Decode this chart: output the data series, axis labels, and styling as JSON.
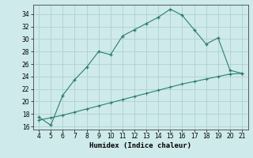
{
  "xlabel": "Humidex (Indice chaleur)",
  "x_curve": [
    4,
    5,
    6,
    7,
    8,
    9,
    10,
    11,
    12,
    13,
    14,
    15,
    16,
    17,
    18,
    19,
    20,
    21
  ],
  "y_curve": [
    17.5,
    16.2,
    21.0,
    23.5,
    25.5,
    28.0,
    27.5,
    30.5,
    31.5,
    32.5,
    33.5,
    34.8,
    33.8,
    31.5,
    29.2,
    30.2,
    25.0,
    24.5
  ],
  "x_line": [
    4,
    5,
    6,
    7,
    8,
    9,
    10,
    11,
    12,
    13,
    14,
    15,
    16,
    17,
    18,
    19,
    20,
    21
  ],
  "y_line": [
    17.0,
    17.4,
    17.8,
    18.3,
    18.8,
    19.3,
    19.8,
    20.3,
    20.8,
    21.3,
    21.8,
    22.3,
    22.8,
    23.2,
    23.6,
    24.0,
    24.4,
    24.5
  ],
  "color": "#2e7d6e",
  "bg_color": "#ceeaea",
  "grid_color": "#b0d0d0",
  "xlim": [
    3.5,
    21.5
  ],
  "ylim": [
    15.5,
    35.5
  ],
  "xticks": [
    4,
    5,
    6,
    7,
    8,
    9,
    10,
    11,
    12,
    13,
    14,
    15,
    16,
    17,
    18,
    19,
    20,
    21
  ],
  "yticks": [
    16,
    18,
    20,
    22,
    24,
    26,
    28,
    30,
    32,
    34
  ],
  "marker": "+"
}
